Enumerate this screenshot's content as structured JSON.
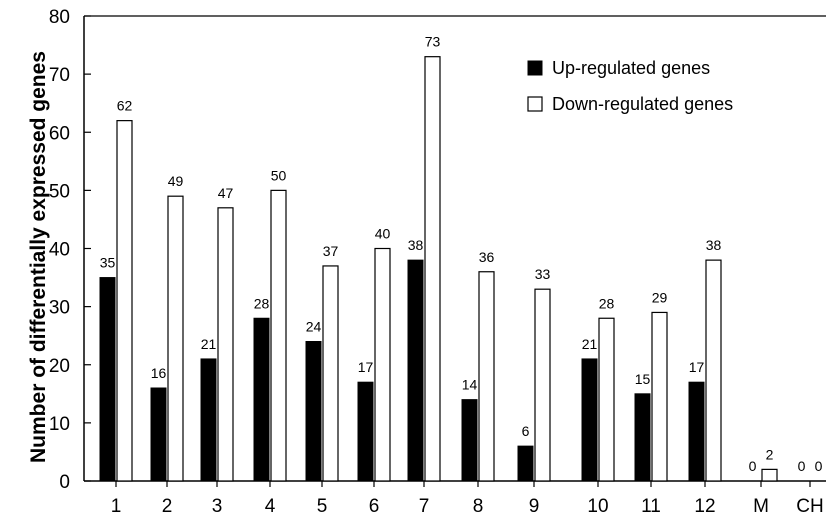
{
  "chart_data": {
    "type": "bar",
    "categories": [
      "1",
      "2",
      "3",
      "4",
      "5",
      "6",
      "7",
      "8",
      "9",
      "10",
      "11",
      "12",
      "M",
      "CH"
    ],
    "series": [
      {
        "name": "Up-regulated genes",
        "color": "#000000",
        "values": [
          35,
          16,
          21,
          28,
          24,
          17,
          38,
          14,
          6,
          21,
          15,
          17,
          0,
          0
        ]
      },
      {
        "name": "Down-regulated genes",
        "color": "#ffffff",
        "values": [
          62,
          49,
          47,
          50,
          37,
          40,
          73,
          36,
          33,
          28,
          29,
          38,
          2,
          0
        ]
      }
    ],
    "title": "",
    "xlabel": "",
    "ylabel": "Number of differentially expressed genes",
    "ylim": [
      0,
      80
    ],
    "yticks": [
      0,
      10,
      20,
      30,
      40,
      50,
      60,
      70,
      80
    ],
    "grid": false,
    "legend_position": "top-right",
    "data_labels": true
  }
}
